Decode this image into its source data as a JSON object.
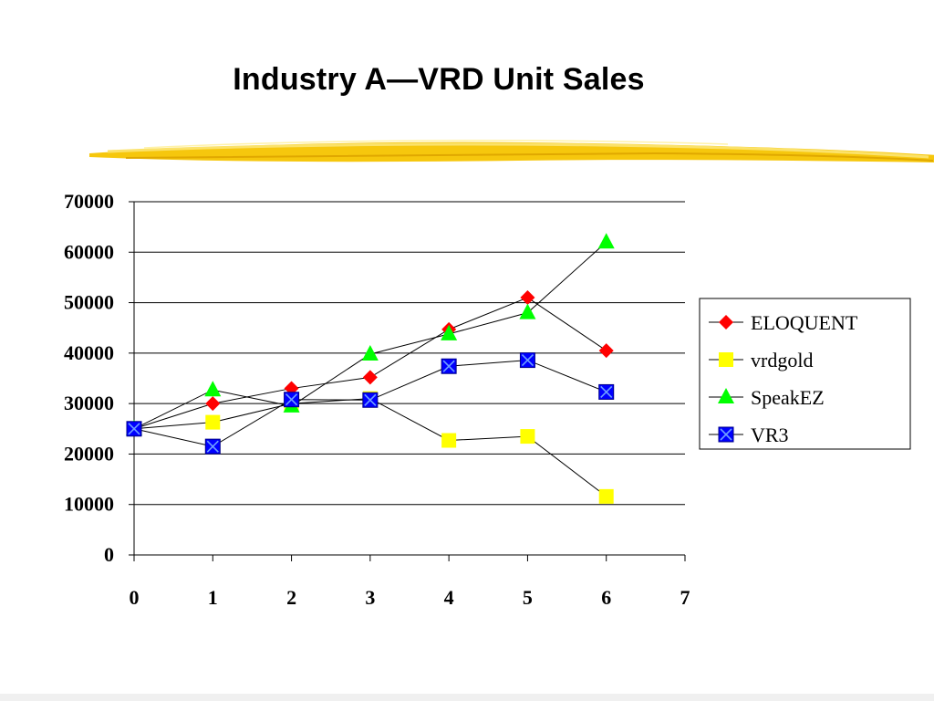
{
  "slide": {
    "title": "Industry A—VRD Unit Sales"
  },
  "colors": {
    "brush": "#f5c400",
    "grid": "#000000",
    "ELOQUENT": "#ff0000",
    "vrdgold": "#ffff00",
    "SpeakEZ": "#00ff00",
    "VR3": "#0000ff"
  },
  "chart_data": {
    "type": "line",
    "title": "Industry A—VRD Unit Sales",
    "xlabel": "",
    "ylabel": "",
    "xlim": [
      0,
      7
    ],
    "ylim": [
      0,
      70000
    ],
    "xticks": [
      0,
      1,
      2,
      3,
      4,
      5,
      6,
      7
    ],
    "yticks": [
      0,
      10000,
      20000,
      30000,
      40000,
      50000,
      60000,
      70000
    ],
    "grid": "horizontal",
    "legend_position": "right",
    "series": [
      {
        "name": "ELOQUENT",
        "marker": "diamond",
        "x": [
          0,
          1,
          2,
          3,
          4,
          5,
          6
        ],
        "y": [
          25000,
          30000,
          33000,
          35200,
          44700,
          51000,
          40500
        ]
      },
      {
        "name": "vrdgold",
        "marker": "square",
        "x": [
          0,
          1,
          2,
          3,
          4,
          5,
          6
        ],
        "y": [
          25000,
          26300,
          30000,
          31000,
          22700,
          23500,
          11600
        ]
      },
      {
        "name": "SpeakEZ",
        "marker": "triangle",
        "x": [
          0,
          1,
          2,
          3,
          4,
          5,
          6
        ],
        "y": [
          25000,
          32700,
          29500,
          39800,
          43800,
          48000,
          62000
        ]
      },
      {
        "name": "VR3",
        "marker": "boxed-x",
        "x": [
          0,
          1,
          2,
          3,
          4,
          5,
          6
        ],
        "y": [
          25000,
          21500,
          30800,
          30700,
          37400,
          38600,
          32300
        ]
      }
    ]
  }
}
